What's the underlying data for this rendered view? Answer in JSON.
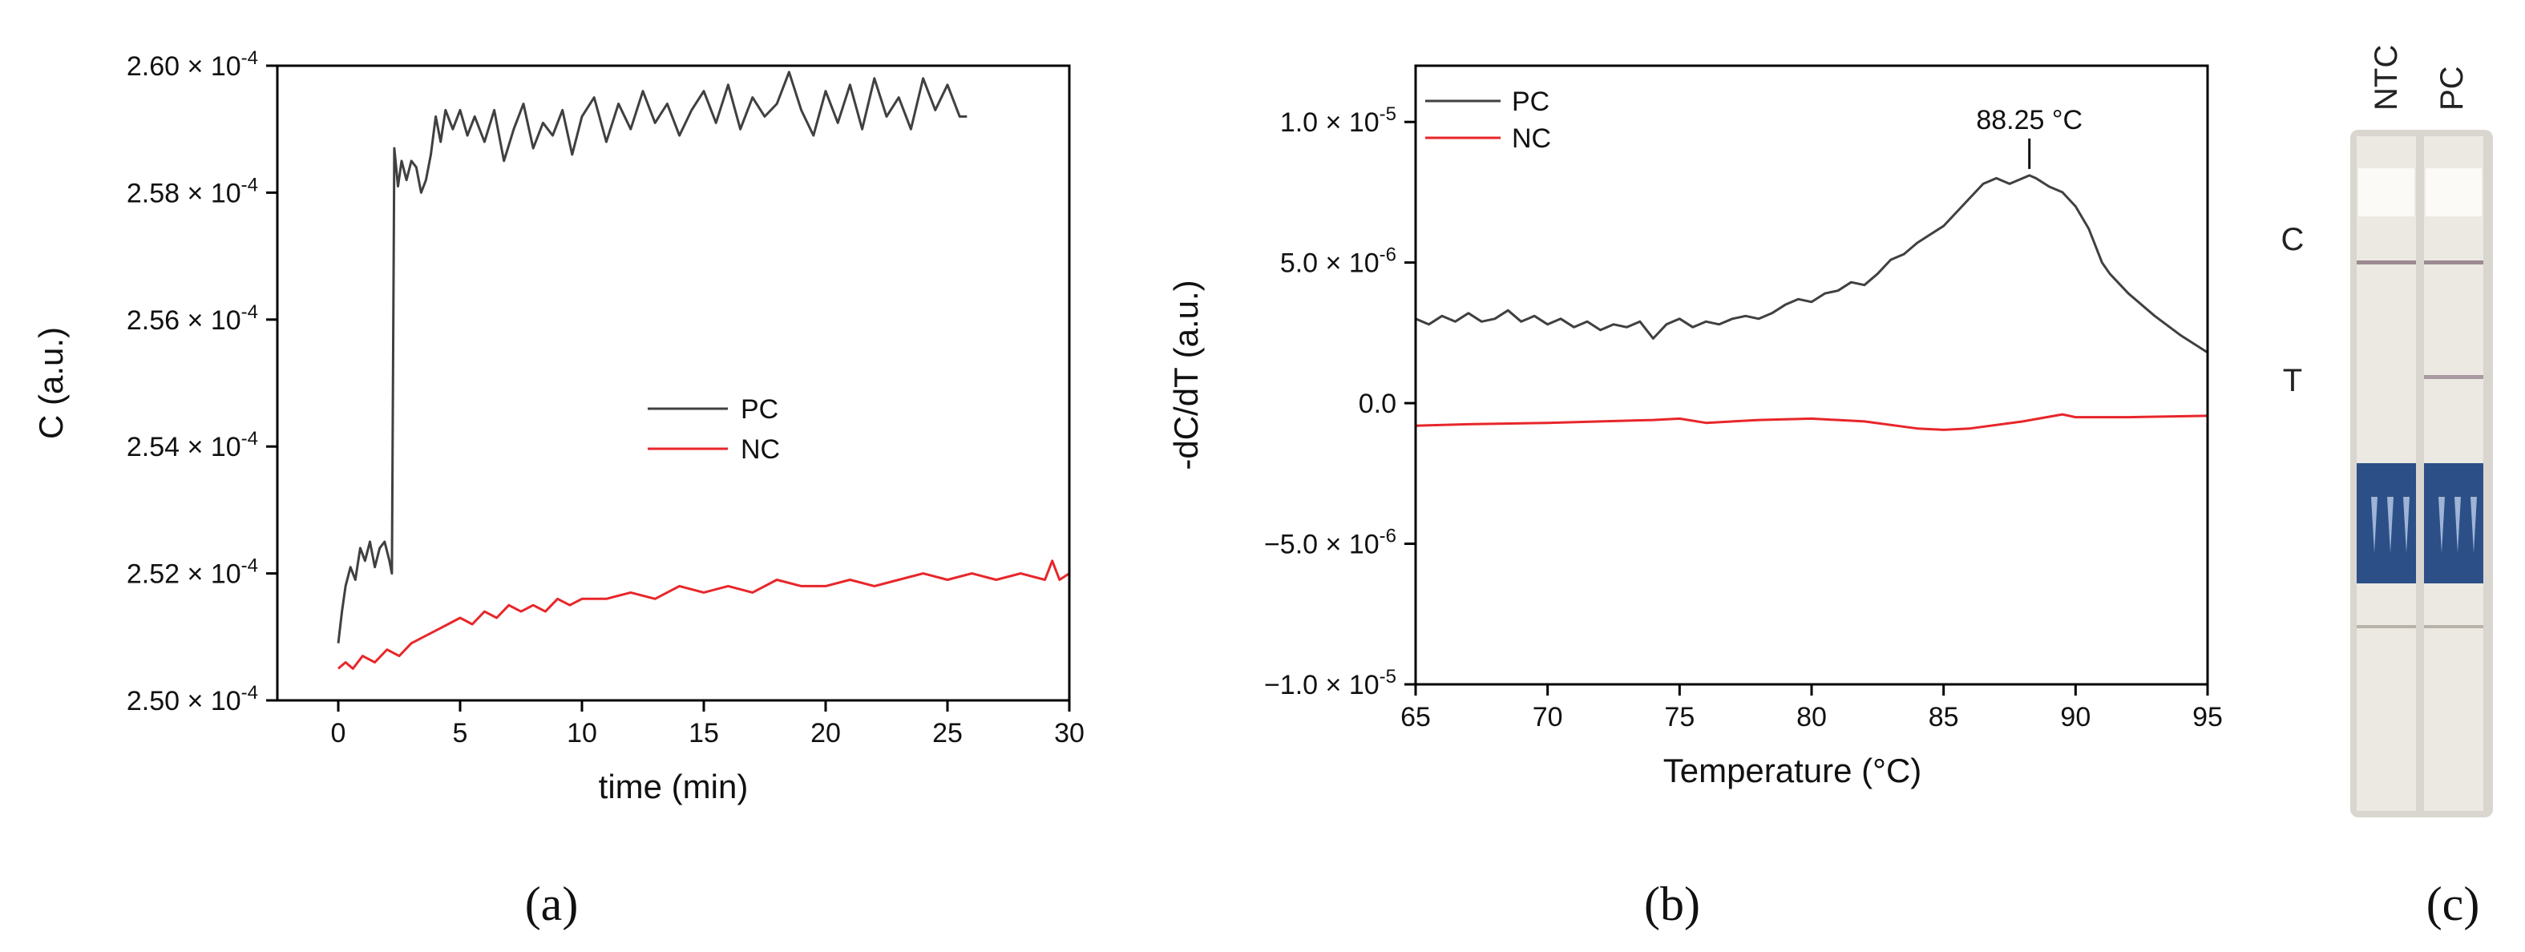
{
  "figure_labels": {
    "a": "(a)",
    "b": "(b)",
    "c": "(c)"
  },
  "colors": {
    "pc": "#404040",
    "nc": "#e8262a",
    "axis": "#000000"
  },
  "chart_data": [
    {
      "id": "a",
      "type": "line",
      "xlabel": "time (min)",
      "ylabel": "C (a.u.)",
      "xlim": [
        -2.5,
        30
      ],
      "ylim": [
        0.00025,
        0.00026
      ],
      "xticks": [
        0,
        5,
        10,
        15,
        20,
        25,
        30
      ],
      "xtick_labels": [
        "0",
        "5",
        "10",
        "15",
        "20",
        "25",
        "30"
      ],
      "yticks": [
        0.00025,
        0.000252,
        0.000254,
        0.000256,
        0.000258,
        0.00026
      ],
      "ytick_mantissas": [
        "2.50",
        "2.52",
        "2.54",
        "2.56",
        "2.58",
        "2.60"
      ],
      "ytick_exponents": [
        "-4",
        "-4",
        "-4",
        "-4",
        "-4",
        "-4"
      ],
      "legend_position": "center-right",
      "series": [
        {
          "name": "PC",
          "color": "#404040",
          "x": [
            0,
            0.15,
            0.3,
            0.5,
            0.7,
            0.9,
            1.1,
            1.3,
            1.5,
            1.7,
            1.9,
            2.1,
            2.2,
            2.3,
            2.45,
            2.6,
            2.8,
            3.0,
            3.2,
            3.4,
            3.6,
            3.8,
            4.0,
            4.2,
            4.4,
            4.7,
            5.0,
            5.3,
            5.6,
            6.0,
            6.4,
            6.8,
            7.2,
            7.6,
            8.0,
            8.4,
            8.8,
            9.2,
            9.6,
            10.0,
            10.5,
            11.0,
            11.5,
            12.0,
            12.5,
            13.0,
            13.5,
            14.0,
            14.5,
            15.0,
            15.5,
            16.0,
            16.5,
            17.0,
            17.5,
            18.0,
            18.5,
            19.0,
            19.5,
            20.0,
            20.5,
            21.0,
            21.5,
            22.0,
            22.5,
            23.0,
            23.5,
            24.0,
            24.5,
            25.0,
            25.5,
            25.8
          ],
          "y": [
            0.0002509,
            0.0002514,
            0.0002518,
            0.0002521,
            0.0002519,
            0.0002524,
            0.0002522,
            0.0002525,
            0.0002521,
            0.0002524,
            0.0002525,
            0.0002522,
            0.000252,
            0.0002587,
            0.0002581,
            0.0002585,
            0.0002582,
            0.0002585,
            0.0002584,
            0.000258,
            0.0002582,
            0.0002586,
            0.0002592,
            0.0002588,
            0.0002593,
            0.000259,
            0.0002593,
            0.0002589,
            0.0002592,
            0.0002588,
            0.0002593,
            0.0002585,
            0.000259,
            0.0002594,
            0.0002587,
            0.0002591,
            0.0002589,
            0.0002593,
            0.0002586,
            0.0002592,
            0.0002595,
            0.0002588,
            0.0002594,
            0.000259,
            0.0002596,
            0.0002591,
            0.0002594,
            0.0002589,
            0.0002593,
            0.0002596,
            0.0002591,
            0.0002597,
            0.000259,
            0.0002595,
            0.0002592,
            0.0002594,
            0.0002599,
            0.0002593,
            0.0002589,
            0.0002596,
            0.0002591,
            0.0002597,
            0.000259,
            0.0002598,
            0.0002592,
            0.0002595,
            0.000259,
            0.0002598,
            0.0002593,
            0.0002597,
            0.0002592,
            0.0002592
          ]
        },
        {
          "name": "NC",
          "color": "#e8262a",
          "x": [
            0,
            0.3,
            0.6,
            1.0,
            1.5,
            2.0,
            2.5,
            3.0,
            3.5,
            4.0,
            4.5,
            5.0,
            5.5,
            6.0,
            6.5,
            7.0,
            7.5,
            8.0,
            8.5,
            9.0,
            9.5,
            10.0,
            11.0,
            12.0,
            13.0,
            14.0,
            15.0,
            16.0,
            17.0,
            18.0,
            19.0,
            20.0,
            21.0,
            22.0,
            23.0,
            24.0,
            25.0,
            26.0,
            27.0,
            28.0,
            29.0,
            29.3,
            29.6,
            30.0
          ],
          "y": [
            0.0002505,
            0.0002506,
            0.0002505,
            0.0002507,
            0.0002506,
            0.0002508,
            0.0002507,
            0.0002509,
            0.000251,
            0.0002511,
            0.0002512,
            0.0002513,
            0.0002512,
            0.0002514,
            0.0002513,
            0.0002515,
            0.0002514,
            0.0002515,
            0.0002514,
            0.0002516,
            0.0002515,
            0.0002516,
            0.0002516,
            0.0002517,
            0.0002516,
            0.0002518,
            0.0002517,
            0.0002518,
            0.0002517,
            0.0002519,
            0.0002518,
            0.0002518,
            0.0002519,
            0.0002518,
            0.0002519,
            0.000252,
            0.0002519,
            0.000252,
            0.0002519,
            0.000252,
            0.0002519,
            0.0002522,
            0.0002519,
            0.000252
          ]
        }
      ]
    },
    {
      "id": "b",
      "type": "line",
      "xlabel": "Temperature (°C)",
      "ylabel": "-dC/dT (a.u.)",
      "xlim": [
        65,
        95
      ],
      "ylim": [
        -1e-05,
        1.2e-05
      ],
      "xticks": [
        65,
        70,
        75,
        80,
        85,
        90,
        95
      ],
      "xtick_labels": [
        "65",
        "70",
        "75",
        "80",
        "85",
        "90",
        "95"
      ],
      "yticks": [
        -1e-05,
        -5e-06,
        0,
        5e-06,
        1e-05
      ],
      "ytick_mantissas": [
        "−1.0",
        "−5.0",
        "0.0",
        "5.0",
        "1.0"
      ],
      "ytick_exponents": [
        "-5",
        "-6",
        "",
        "-6",
        "-5"
      ],
      "legend_position": "top-left",
      "annotation": {
        "text": "88.25 °C",
        "x": 88.25,
        "y": 8.1e-06
      },
      "series": [
        {
          "name": "PC",
          "color": "#404040",
          "x": [
            65,
            65.5,
            66,
            66.5,
            67,
            67.5,
            68,
            68.5,
            69,
            69.5,
            70,
            70.5,
            71,
            71.5,
            72,
            72.5,
            73,
            73.5,
            74,
            74.5,
            75,
            75.5,
            76,
            76.5,
            77,
            77.5,
            78,
            78.5,
            79,
            79.5,
            80,
            80.5,
            81,
            81.5,
            82,
            82.5,
            83,
            83.5,
            84,
            84.5,
            85,
            85.5,
            86,
            86.5,
            87,
            87.5,
            88,
            88.25,
            88.5,
            89,
            89.5,
            90,
            90.5,
            91,
            91.3,
            92,
            93,
            94,
            95
          ],
          "y": [
            3e-06,
            2.8e-06,
            3.1e-06,
            2.9e-06,
            3.2e-06,
            2.9e-06,
            3e-06,
            3.3e-06,
            2.9e-06,
            3.1e-06,
            2.8e-06,
            3e-06,
            2.7e-06,
            2.9e-06,
            2.6e-06,
            2.8e-06,
            2.7e-06,
            2.9e-06,
            2.3e-06,
            2.8e-06,
            3e-06,
            2.7e-06,
            2.9e-06,
            2.8e-06,
            3e-06,
            3.1e-06,
            3e-06,
            3.2e-06,
            3.5e-06,
            3.7e-06,
            3.6e-06,
            3.9e-06,
            4e-06,
            4.3e-06,
            4.2e-06,
            4.6e-06,
            5.1e-06,
            5.3e-06,
            5.7e-06,
            6e-06,
            6.3e-06,
            6.8e-06,
            7.3e-06,
            7.8e-06,
            8e-06,
            7.8e-06,
            8e-06,
            8.1e-06,
            8e-06,
            7.7e-06,
            7.5e-06,
            7e-06,
            6.2e-06,
            5e-06,
            4.6e-06,
            3.9e-06,
            3.1e-06,
            2.4e-06,
            1.8e-06
          ]
        },
        {
          "name": "NC",
          "color": "#e8262a",
          "x": [
            65,
            67,
            70,
            72,
            74,
            75,
            76,
            78,
            80,
            82,
            84,
            85,
            86,
            88,
            89.5,
            90,
            92,
            95
          ],
          "y": [
            -8e-07,
            -7.5e-07,
            -7e-07,
            -6.5e-07,
            -6e-07,
            -5.5e-07,
            -7e-07,
            -6e-07,
            -5.5e-07,
            -6.5e-07,
            -9e-07,
            -9.5e-07,
            -9e-07,
            -6.5e-07,
            -4e-07,
            -5e-07,
            -5e-07,
            -4.5e-07
          ]
        }
      ]
    }
  ],
  "test_strip": {
    "lane_labels": [
      "NTC",
      "PC"
    ],
    "line_labels": {
      "control": "C",
      "test": "T"
    },
    "control_line": {
      "NTC": true,
      "PC": true
    },
    "test_line": {
      "NTC": false,
      "PC": true
    }
  }
}
